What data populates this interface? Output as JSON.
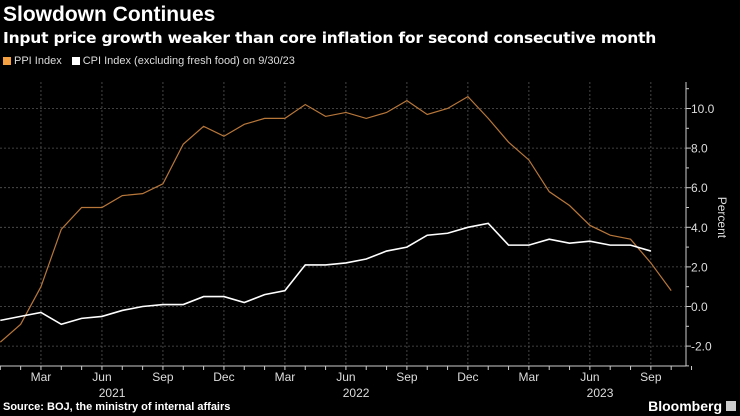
{
  "header": {
    "title": "Slowdown Continues",
    "subtitle": "Input price growth weaker than core inflation for second consecutive month"
  },
  "footer": {
    "source": "Source: BOJ, the ministry of internal affairs",
    "brand": "Bloomberg"
  },
  "chart_data": {
    "type": "line",
    "ylabel": "Percent",
    "ylim": [
      -3,
      11.5
    ],
    "yticks": [
      "-2.0",
      "0.0",
      "2.0",
      "4.0",
      "6.0",
      "8.0",
      "10.0"
    ],
    "ytick_values": [
      -2,
      0,
      2,
      4,
      6,
      8,
      10
    ],
    "axis_side": "right",
    "grid": true,
    "legend_placement": "top-left",
    "x_start": "2021-01",
    "xticks": [
      "Mar",
      "Jun",
      "Sep",
      "Dec",
      "Mar",
      "Jun",
      "Sep",
      "Dec",
      "Mar",
      "Jun",
      "Sep"
    ],
    "xtick_months": [
      "2021-03",
      "2021-06",
      "2021-09",
      "2021-12",
      "2022-03",
      "2022-06",
      "2022-09",
      "2022-12",
      "2023-03",
      "2023-06",
      "2023-09"
    ],
    "years": [
      "2021",
      "2022",
      "2023"
    ],
    "series": [
      {
        "name": "PPI Index",
        "color": "#f5a142",
        "line_color": "#b8773a",
        "x": [
          "2021-01",
          "2021-02",
          "2021-03",
          "2021-04",
          "2021-05",
          "2021-06",
          "2021-07",
          "2021-08",
          "2021-09",
          "2021-10",
          "2021-11",
          "2021-12",
          "2022-01",
          "2022-02",
          "2022-03",
          "2022-04",
          "2022-05",
          "2022-06",
          "2022-07",
          "2022-08",
          "2022-09",
          "2022-10",
          "2022-11",
          "2022-12",
          "2023-01",
          "2023-02",
          "2023-03",
          "2023-04",
          "2023-05",
          "2023-06",
          "2023-07",
          "2023-08",
          "2023-09",
          "2023-10"
        ],
        "values": [
          -1.8,
          -0.9,
          1.0,
          3.9,
          5.0,
          5.0,
          5.6,
          5.7,
          6.2,
          8.2,
          9.1,
          8.6,
          9.2,
          9.5,
          9.5,
          10.2,
          9.6,
          9.8,
          9.5,
          9.8,
          10.4,
          9.7,
          10.0,
          10.6,
          9.5,
          8.3,
          7.4,
          5.8,
          5.1,
          4.1,
          3.6,
          3.4,
          2.2,
          0.8
        ]
      },
      {
        "name": "CPI Index (excluding fresh food) on 9/30/23",
        "color": "#ffffff",
        "line_color": "#ffffff",
        "x": [
          "2021-01",
          "2021-02",
          "2021-03",
          "2021-04",
          "2021-05",
          "2021-06",
          "2021-07",
          "2021-08",
          "2021-09",
          "2021-10",
          "2021-11",
          "2021-12",
          "2022-01",
          "2022-02",
          "2022-03",
          "2022-04",
          "2022-05",
          "2022-06",
          "2022-07",
          "2022-08",
          "2022-09",
          "2022-10",
          "2022-11",
          "2022-12",
          "2023-01",
          "2023-02",
          "2023-03",
          "2023-04",
          "2023-05",
          "2023-06",
          "2023-07",
          "2023-08",
          "2023-09"
        ],
        "values": [
          -0.7,
          -0.5,
          -0.3,
          -0.9,
          -0.6,
          -0.5,
          -0.2,
          0.0,
          0.1,
          0.1,
          0.5,
          0.5,
          0.2,
          0.6,
          0.8,
          2.1,
          2.1,
          2.2,
          2.4,
          2.8,
          3.0,
          3.6,
          3.7,
          4.0,
          4.2,
          3.1,
          3.1,
          3.4,
          3.2,
          3.3,
          3.1,
          3.1,
          2.8
        ]
      }
    ]
  }
}
